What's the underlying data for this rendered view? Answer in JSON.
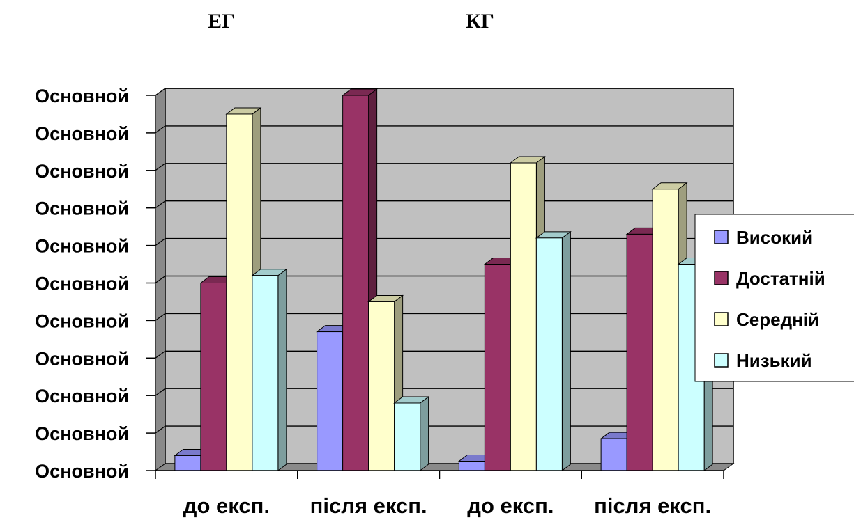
{
  "groups": {
    "left": "ЕГ",
    "right": "КГ"
  },
  "chart_data": {
    "type": "bar",
    "categories": [
      "до експ.",
      "після експ.",
      "до експ.",
      "після експ."
    ],
    "y_tick_labels": [
      "Основной",
      "Основной",
      "Основной",
      "Основной",
      "Основной",
      "Основной",
      "Основной",
      "Основной",
      "Основной",
      "Основной",
      "Основной"
    ],
    "ylim": [
      0,
      10
    ],
    "grid": true,
    "legend_position": "right",
    "series": [
      {
        "name": "Високий",
        "color": "#9999ff",
        "values": [
          0.4,
          3.7,
          0.25,
          0.85
        ]
      },
      {
        "name": "Достатній",
        "color": "#993366",
        "values": [
          5.0,
          10.0,
          5.5,
          6.3
        ]
      },
      {
        "name": "Середній",
        "color": "#ffffcc",
        "values": [
          9.5,
          4.5,
          8.2,
          7.5
        ]
      },
      {
        "name": "Низький",
        "color": "#ccffff",
        "values": [
          5.2,
          1.8,
          6.2,
          5.5
        ]
      }
    ]
  }
}
